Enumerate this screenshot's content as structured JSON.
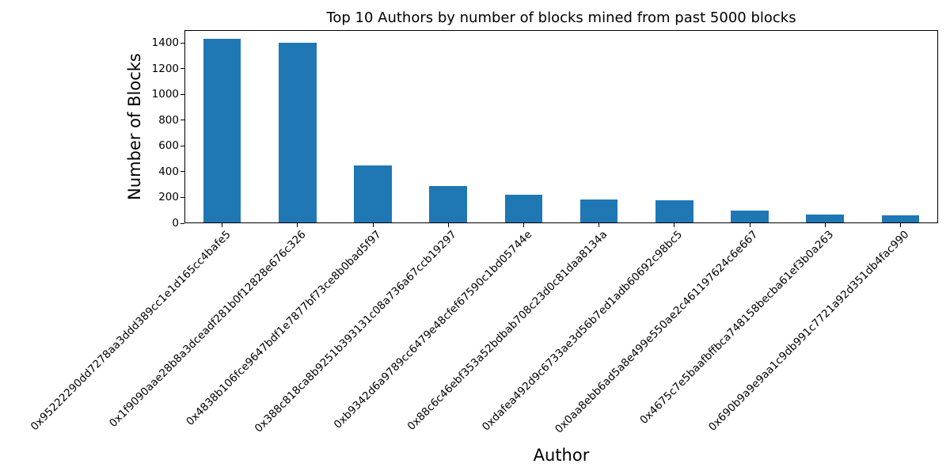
{
  "chart_data": {
    "type": "bar",
    "title": "Top 10 Authors by number of blocks mined from past 5000 blocks",
    "xlabel": "Author",
    "ylabel": "Number of Blocks",
    "categories": [
      "0x95222290dd7278aa3ddd389cc1e1d165cc4bafe5",
      "0x1f9090aae28b8a3dceadf281b0f12828e676c326",
      "0x4838b106fce9647bdf1e7877bf73ce8b0bad5f97",
      "0x388c818ca8b9251b393131c08a736a67ccb19297",
      "0xb9342d6a9789cc6479e48cfef67590c1bd05744e",
      "0x88c6c46ebf353a52bdbab708c23d0c81daa8134a",
      "0xdafea492d9c6733ae3d56b7ed1adb60692c98bc5",
      "0x0aa8ebb6ad5a8e499e550ae2c461197624c6e667",
      "0x4675c7e5baafbffbca748158becba61ef3b0a263",
      "0x690b9a9e9aa1c9db991c7721a92d351db4fac990"
    ],
    "values": [
      1430,
      1400,
      445,
      285,
      215,
      180,
      170,
      95,
      60,
      55
    ],
    "ylim": [
      0,
      1500
    ],
    "yticks": [
      0,
      200,
      400,
      600,
      800,
      1000,
      1200,
      1400
    ],
    "bar_color": "#1f77b4",
    "grid": false,
    "legend_position": "none",
    "bar_width_fraction": 0.5
  }
}
